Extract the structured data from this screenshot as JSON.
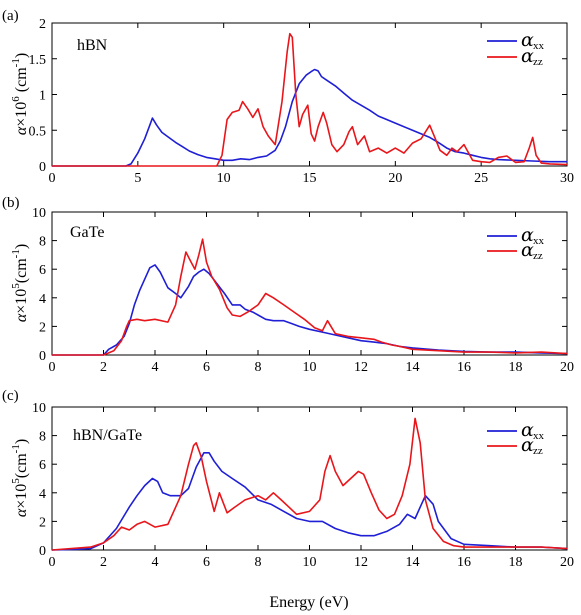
{
  "figure": {
    "xlabel": "Energy (eV)"
  },
  "colors": {
    "xx": "#1f1fd6",
    "zz": "#e8161b"
  },
  "chart_data": [
    {
      "type": "line",
      "panel": "(a)",
      "material": "hBN",
      "ylabel": {
        "alpha": "α",
        "mid": "×10",
        "exp": "6",
        "unit": " (cm",
        "uexp": "-1",
        "close": ")"
      },
      "xlim": [
        0,
        30
      ],
      "ylim": [
        0,
        2
      ],
      "xticks": [
        0,
        5,
        10,
        15,
        20,
        25,
        30
      ],
      "yticks": [
        0,
        0.5,
        1,
        1.5,
        2
      ],
      "ytick_labels": [
        "0",
        "0.5",
        "1",
        "1.5",
        "2"
      ],
      "legend": {
        "position": "top-right",
        "entries": [
          {
            "alpha": "α",
            "sub": "xx"
          },
          {
            "alpha": "α",
            "sub": "zz"
          }
        ]
      },
      "series": [
        {
          "key": "xx",
          "color": "#1f1fd6",
          "x": [
            0,
            4.3,
            4.6,
            5.0,
            5.4,
            5.7,
            5.85,
            6.1,
            6.4,
            6.8,
            7.2,
            7.6,
            8.0,
            8.5,
            9.0,
            9.5,
            10.0,
            10.5,
            11.0,
            11.5,
            12.0,
            12.5,
            13.0,
            13.3,
            13.6,
            14.0,
            14.4,
            14.8,
            15.1,
            15.3,
            15.5,
            15.7,
            16.0,
            16.5,
            17.0,
            17.5,
            18.0,
            18.5,
            19.0,
            20.0,
            21.0,
            22.0,
            22.5,
            23.0,
            23.5,
            24.0,
            24.5,
            25.0,
            25.5,
            26.0,
            27.0,
            28.0,
            29.0,
            30.0
          ],
          "y": [
            0,
            0,
            0.03,
            0.18,
            0.38,
            0.57,
            0.67,
            0.57,
            0.47,
            0.4,
            0.33,
            0.27,
            0.21,
            0.16,
            0.12,
            0.1,
            0.08,
            0.08,
            0.1,
            0.09,
            0.12,
            0.14,
            0.22,
            0.35,
            0.55,
            0.9,
            1.15,
            1.27,
            1.32,
            1.35,
            1.33,
            1.25,
            1.2,
            1.12,
            1.02,
            0.92,
            0.85,
            0.78,
            0.7,
            0.6,
            0.5,
            0.4,
            0.33,
            0.25,
            0.2,
            0.18,
            0.15,
            0.12,
            0.1,
            0.09,
            0.08,
            0.07,
            0.06,
            0.06
          ]
        },
        {
          "key": "zz",
          "color": "#e8161b",
          "x": [
            0,
            9.6,
            9.9,
            10.2,
            10.5,
            10.9,
            11.1,
            11.4,
            11.7,
            12.0,
            12.3,
            12.6,
            13.0,
            13.4,
            13.7,
            13.85,
            14.0,
            14.2,
            14.4,
            14.6,
            14.9,
            15.1,
            15.3,
            15.5,
            15.8,
            16.0,
            16.3,
            16.6,
            17.0,
            17.3,
            17.5,
            17.8,
            18.2,
            18.5,
            19.0,
            19.5,
            20.0,
            20.5,
            21.0,
            21.5,
            22.0,
            22.3,
            22.6,
            23.0,
            23.3,
            23.6,
            24.0,
            24.5,
            25.0,
            25.5,
            26.0,
            26.5,
            27.0,
            27.5,
            27.8,
            28.0,
            28.2,
            28.5,
            29.0,
            30.0
          ],
          "y": [
            0,
            0,
            0.15,
            0.65,
            0.75,
            0.78,
            0.9,
            0.8,
            0.68,
            0.8,
            0.55,
            0.42,
            0.3,
            0.9,
            1.6,
            1.85,
            1.8,
            1.0,
            0.55,
            0.72,
            0.85,
            0.45,
            0.35,
            0.55,
            0.75,
            0.6,
            0.3,
            0.2,
            0.3,
            0.48,
            0.55,
            0.3,
            0.42,
            0.2,
            0.25,
            0.18,
            0.25,
            0.18,
            0.32,
            0.38,
            0.57,
            0.4,
            0.22,
            0.15,
            0.25,
            0.2,
            0.3,
            0.08,
            0.06,
            0.05,
            0.12,
            0.14,
            0.05,
            0.06,
            0.25,
            0.4,
            0.15,
            0.04,
            0.03,
            0.02
          ]
        }
      ]
    },
    {
      "type": "line",
      "panel": "(b)",
      "material": "GaTe",
      "ylabel": {
        "alpha": "α",
        "mid": "×10",
        "exp": "5",
        "unit": "(cm",
        "uexp": "-1",
        "close": ")"
      },
      "xlim": [
        0,
        20
      ],
      "ylim": [
        0,
        10
      ],
      "xticks": [
        0,
        2,
        4,
        6,
        8,
        10,
        12,
        14,
        16,
        18,
        20
      ],
      "yticks": [
        0,
        2,
        4,
        6,
        8,
        10
      ],
      "ytick_labels": [
        "0",
        "2",
        "4",
        "6",
        "8",
        "10"
      ],
      "legend": {
        "position": "top-right",
        "entries": [
          {
            "alpha": "α",
            "sub": "xx"
          },
          {
            "alpha": "α",
            "sub": "zz"
          }
        ]
      },
      "series": [
        {
          "key": "xx",
          "color": "#1f1fd6",
          "x": [
            0,
            2.0,
            2.2,
            2.5,
            2.8,
            3.0,
            3.2,
            3.4,
            3.6,
            3.8,
            4.0,
            4.2,
            4.5,
            4.8,
            5.0,
            5.3,
            5.5,
            5.7,
            5.9,
            6.1,
            6.4,
            6.7,
            7.0,
            7.3,
            7.5,
            7.8,
            8.0,
            8.3,
            8.6,
            9.0,
            9.3,
            9.6,
            10.0,
            10.5,
            11.0,
            11.5,
            12.0,
            12.5,
            13.0,
            13.5,
            14.0,
            15.0,
            16.0,
            17.0,
            18.0,
            19.0,
            20.0
          ],
          "y": [
            0,
            0,
            0.4,
            0.7,
            1.3,
            2.2,
            3.5,
            4.5,
            5.3,
            6.1,
            6.3,
            5.8,
            4.7,
            4.3,
            4.0,
            4.8,
            5.5,
            5.8,
            6.0,
            5.7,
            5.0,
            4.3,
            3.5,
            3.5,
            3.2,
            3.0,
            2.8,
            2.5,
            2.4,
            2.4,
            2.2,
            2.0,
            1.8,
            1.6,
            1.4,
            1.2,
            1.0,
            0.9,
            0.8,
            0.6,
            0.5,
            0.35,
            0.25,
            0.2,
            0.2,
            0.15,
            0.1
          ]
        },
        {
          "key": "zz",
          "color": "#e8161b",
          "x": [
            0,
            2.0,
            2.4,
            2.7,
            2.9,
            3.0,
            3.3,
            3.6,
            4.0,
            4.5,
            4.8,
            5.0,
            5.2,
            5.4,
            5.55,
            5.7,
            5.85,
            6.0,
            6.2,
            6.5,
            6.8,
            7.0,
            7.3,
            7.6,
            8.0,
            8.3,
            8.6,
            9.0,
            9.4,
            9.8,
            10.2,
            10.5,
            10.7,
            11.0,
            11.5,
            12.0,
            12.5,
            12.8,
            13.2,
            13.5,
            14.0,
            15.0,
            16.0,
            17.0,
            18.0,
            19.0,
            20.0
          ],
          "y": [
            0,
            0,
            0.3,
            1.0,
            2.0,
            2.4,
            2.5,
            2.4,
            2.5,
            2.3,
            3.5,
            5.5,
            7.2,
            6.5,
            6.0,
            7.0,
            8.1,
            6.5,
            5.5,
            4.6,
            3.3,
            2.8,
            2.7,
            3.0,
            3.5,
            4.3,
            4.0,
            3.5,
            3.0,
            2.5,
            1.9,
            1.7,
            2.4,
            1.5,
            1.3,
            1.2,
            1.1,
            0.9,
            0.7,
            0.6,
            0.4,
            0.3,
            0.2,
            0.2,
            0.15,
            0.2,
            0.1
          ]
        }
      ]
    },
    {
      "type": "line",
      "panel": "(c)",
      "material": "hBN/GaTe",
      "ylabel": {
        "alpha": "α",
        "mid": "×10",
        "exp": "5",
        "unit": "(cm",
        "uexp": "-1",
        "close": ")"
      },
      "xlim": [
        0,
        20
      ],
      "ylim": [
        0,
        10
      ],
      "xticks": [
        0,
        2,
        4,
        6,
        8,
        10,
        12,
        14,
        16,
        18,
        20
      ],
      "yticks": [
        0,
        2,
        4,
        6,
        8,
        10
      ],
      "ytick_labels": [
        "0",
        "2",
        "4",
        "6",
        "8",
        "10"
      ],
      "legend": {
        "position": "top-right",
        "entries": [
          {
            "alpha": "α",
            "sub": "xx"
          },
          {
            "alpha": "α",
            "sub": "zz"
          }
        ]
      },
      "series": [
        {
          "key": "xx",
          "color": "#1f1fd6",
          "x": [
            0,
            1.0,
            1.5,
            2.0,
            2.5,
            3.0,
            3.3,
            3.6,
            3.9,
            4.1,
            4.3,
            4.6,
            5.0,
            5.3,
            5.6,
            5.9,
            6.1,
            6.3,
            6.6,
            7.0,
            7.5,
            8.0,
            8.5,
            9.0,
            9.5,
            10.0,
            10.5,
            11.0,
            11.5,
            12.0,
            12.5,
            13.0,
            13.5,
            13.8,
            14.1,
            14.3,
            14.5,
            14.8,
            15.0,
            15.5,
            16.0,
            17.0,
            18.0,
            19.0,
            20.0
          ],
          "y": [
            0,
            0.05,
            0.1,
            0.5,
            1.5,
            3.0,
            3.8,
            4.5,
            5.0,
            4.8,
            4.0,
            3.8,
            3.8,
            4.3,
            5.8,
            6.8,
            6.8,
            6.2,
            5.5,
            5.0,
            4.4,
            3.5,
            3.2,
            2.7,
            2.2,
            2.0,
            2.0,
            1.5,
            1.2,
            1.0,
            1.0,
            1.3,
            1.8,
            2.5,
            2.2,
            3.0,
            3.8,
            3.2,
            2.0,
            0.8,
            0.4,
            0.3,
            0.2,
            0.2,
            0.1
          ]
        },
        {
          "key": "zz",
          "color": "#e8161b",
          "x": [
            0,
            1.5,
            2.0,
            2.4,
            2.7,
            3.0,
            3.3,
            3.6,
            4.0,
            4.5,
            5.0,
            5.3,
            5.5,
            5.6,
            5.8,
            6.0,
            6.3,
            6.5,
            6.8,
            7.1,
            7.5,
            8.0,
            8.3,
            8.6,
            8.9,
            9.2,
            9.5,
            10.0,
            10.4,
            10.6,
            10.8,
            11.0,
            11.3,
            11.6,
            11.9,
            12.1,
            12.4,
            12.7,
            13.0,
            13.3,
            13.6,
            13.9,
            14.1,
            14.3,
            14.5,
            14.8,
            15.2,
            15.6,
            16.0,
            17.0,
            18.0,
            19.0,
            20.0
          ],
          "y": [
            0,
            0.2,
            0.5,
            1.0,
            1.6,
            1.4,
            1.8,
            2.0,
            1.6,
            1.8,
            3.8,
            6.0,
            7.3,
            7.5,
            6.5,
            4.8,
            2.7,
            4.0,
            2.6,
            3.0,
            3.5,
            3.8,
            3.5,
            4.0,
            3.5,
            3.0,
            2.5,
            2.7,
            3.5,
            5.5,
            6.6,
            5.5,
            4.5,
            5.0,
            5.5,
            5.3,
            4.0,
            2.8,
            2.2,
            2.5,
            3.8,
            6.0,
            9.2,
            7.5,
            3.5,
            1.5,
            0.6,
            0.3,
            0.2,
            0.2,
            0.2,
            0.2,
            0.1
          ]
        }
      ]
    }
  ]
}
